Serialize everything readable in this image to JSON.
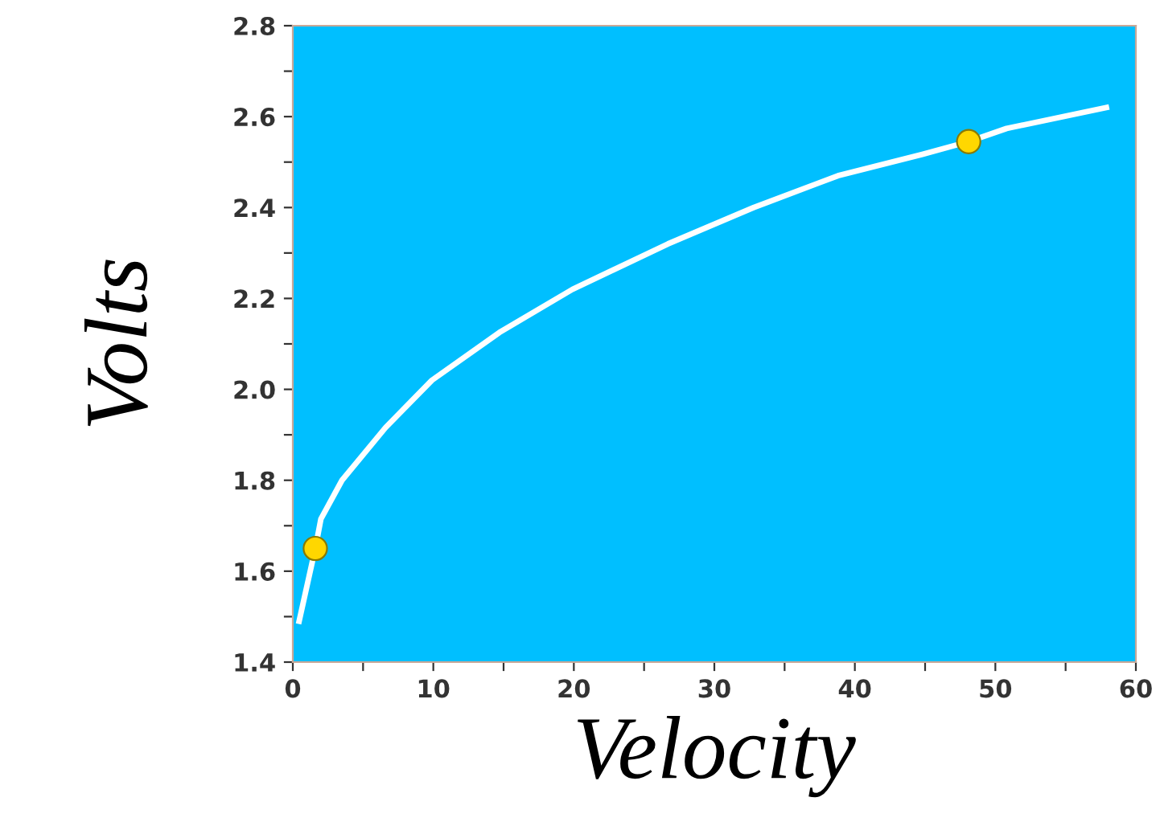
{
  "chart_data": {
    "type": "line",
    "xlabel": "Velocity",
    "ylabel": "Volts",
    "xlim": [
      0,
      60
    ],
    "ylim": [
      1.4,
      2.8
    ],
    "xticks": [
      0,
      {
        "value": 5,
        "label": null
      },
      10,
      {
        "value": 15,
        "label": null
      },
      20,
      {
        "value": 25,
        "label": null
      },
      30,
      {
        "value": 35,
        "label": null
      },
      40,
      {
        "value": 45,
        "label": null
      },
      50,
      {
        "value": 55,
        "label": null
      },
      60
    ],
    "yticks": [
      1.4,
      {
        "value": 1.5,
        "label": null
      },
      1.6,
      {
        "value": 1.7,
        "label": null
      },
      1.8,
      {
        "value": 1.9,
        "label": null
      },
      {
        "value": 2.0,
        "label": "2.0"
      },
      {
        "value": 2.1,
        "label": null
      },
      2.2,
      {
        "value": 2.3,
        "label": null
      },
      2.4,
      {
        "value": 2.5,
        "label": null
      },
      2.6,
      {
        "value": 2.7,
        "label": null
      },
      2.8
    ],
    "grid": false,
    "legend": false,
    "series": [
      {
        "color": "#ffffff",
        "marker": "none",
        "line_style": "solid",
        "x": [
          0.45,
          1.6,
          2.0,
          3.5,
          6.6,
          9.9,
          14.7,
          19.9,
          26.7,
          32.8,
          38.8,
          44.8,
          48.1,
          50.8,
          57.9
        ],
        "values": [
          1.49,
          1.65,
          1.715,
          1.8,
          1.916,
          2.02,
          2.125,
          2.22,
          2.32,
          2.4,
          2.47,
          2.517,
          2.545,
          2.574,
          2.62
        ]
      },
      {
        "type": "scatter",
        "color": "#ffd700",
        "marker": "circle",
        "x": [
          1.6,
          48.1
        ],
        "values": [
          1.65,
          2.545
        ]
      }
    ]
  }
}
